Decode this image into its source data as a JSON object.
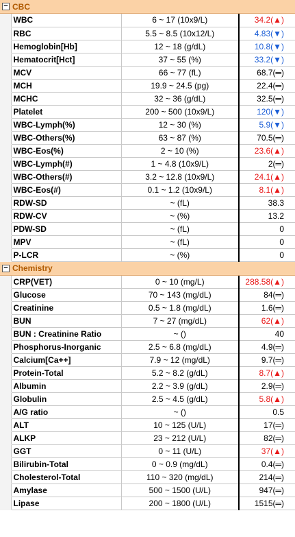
{
  "sections": [
    {
      "title": "CBC",
      "rows": [
        {
          "name": "WBC",
          "range": "6 ~ 17 (10x9/L)",
          "result": "34.2(▲)",
          "color": "red"
        },
        {
          "name": "RBC",
          "range": "5.5 ~ 8.5 (10x12/L)",
          "result": "4.83(▼)",
          "color": "blue"
        },
        {
          "name": "Hemoglobin[Hb]",
          "range": "12 ~ 18 (g/dL)",
          "result": "10.8(▼)",
          "color": "blue"
        },
        {
          "name": "Hematocrit[Hct]",
          "range": "37 ~ 55 (%)",
          "result": "33.2(▼)",
          "color": "blue"
        },
        {
          "name": "MCV",
          "range": "66 ~ 77 (fL)",
          "result": "68.7(═)",
          "color": "black"
        },
        {
          "name": "MCH",
          "range": "19.9 ~ 24.5 (pg)",
          "result": "22.4(═)",
          "color": "black"
        },
        {
          "name": "MCHC",
          "range": "32 ~ 36 (g/dL)",
          "result": "32.5(═)",
          "color": "black"
        },
        {
          "name": "Platelet",
          "range": "200 ~ 500 (10x9/L)",
          "result": "120(▼)",
          "color": "blue"
        },
        {
          "name": "WBC-Lymph(%)",
          "range": "12 ~ 30 (%)",
          "result": "5.9(▼)",
          "color": "blue"
        },
        {
          "name": "WBC-Others(%)",
          "range": "63 ~ 87 (%)",
          "result": "70.5(═)",
          "color": "black"
        },
        {
          "name": "WBC-Eos(%)",
          "range": "2 ~ 10 (%)",
          "result": "23.6(▲)",
          "color": "red"
        },
        {
          "name": "WBC-Lymph(#)",
          "range": "1 ~ 4.8 (10x9/L)",
          "result": "2(═)",
          "color": "black"
        },
        {
          "name": "WBC-Others(#)",
          "range": "3.2 ~ 12.8 (10x9/L)",
          "result": "24.1(▲)",
          "color": "red"
        },
        {
          "name": "WBC-Eos(#)",
          "range": "0.1 ~ 1.2 (10x9/L)",
          "result": "8.1(▲)",
          "color": "red"
        },
        {
          "name": "RDW-SD",
          "range": "~ (fL)",
          "result": "38.3",
          "color": "black"
        },
        {
          "name": "RDW-CV",
          "range": "~ (%)",
          "result": "13.2",
          "color": "black"
        },
        {
          "name": "PDW-SD",
          "range": "~ (fL)",
          "result": "0",
          "color": "black"
        },
        {
          "name": "MPV",
          "range": "~ (fL)",
          "result": "0",
          "color": "black"
        },
        {
          "name": "P-LCR",
          "range": "~ (%)",
          "result": "0",
          "color": "black"
        }
      ]
    },
    {
      "title": "Chemistry",
      "rows": [
        {
          "name": "CRP(VET)",
          "range": "0 ~ 10 (mg/L)",
          "result": "288.58(▲)",
          "color": "red"
        },
        {
          "name": "Glucose",
          "range": "70 ~ 143 (mg/dL)",
          "result": "84(═)",
          "color": "black"
        },
        {
          "name": "Creatinine",
          "range": "0.5 ~ 1.8 (mg/dL)",
          "result": "1.6(═)",
          "color": "black"
        },
        {
          "name": "BUN",
          "range": "7 ~ 27 (mg/dL)",
          "result": "62(▲)",
          "color": "red"
        },
        {
          "name": "BUN : Creatinine Ratio",
          "range": "~ ()",
          "result": "40",
          "color": "black"
        },
        {
          "name": "Phosphorus-Inorganic",
          "range": "2.5 ~ 6.8 (mg/dL)",
          "result": "4.9(═)",
          "color": "black"
        },
        {
          "name": "Calcium[Ca++]",
          "range": "7.9 ~ 12 (mg/dL)",
          "result": "9.7(═)",
          "color": "black"
        },
        {
          "name": "Protein-Total",
          "range": "5.2 ~ 8.2 (g/dL)",
          "result": "8.7(▲)",
          "color": "red"
        },
        {
          "name": "Albumin",
          "range": "2.2 ~ 3.9 (g/dL)",
          "result": "2.9(═)",
          "color": "black"
        },
        {
          "name": "Globulin",
          "range": "2.5 ~ 4.5 (g/dL)",
          "result": "5.8(▲)",
          "color": "red"
        },
        {
          "name": "A/G ratio",
          "range": "~ ()",
          "result": "0.5",
          "color": "black"
        },
        {
          "name": "ALT",
          "range": "10 ~ 125 (U/L)",
          "result": "17(═)",
          "color": "black"
        },
        {
          "name": "ALKP",
          "range": "23 ~ 212 (U/L)",
          "result": "82(═)",
          "color": "black"
        },
        {
          "name": "GGT",
          "range": "0 ~ 11 (U/L)",
          "result": "37(▲)",
          "color": "red"
        },
        {
          "name": "Bilirubin-Total",
          "range": "0 ~ 0.9 (mg/dL)",
          "result": "0.4(═)",
          "color": "black"
        },
        {
          "name": "Cholesterol-Total",
          "range": "110 ~ 320 (mg/dL)",
          "result": "214(═)",
          "color": "black"
        },
        {
          "name": "Amylase",
          "range": "500 ~ 1500 (U/L)",
          "result": "947(═)",
          "color": "black"
        },
        {
          "name": "Lipase",
          "range": "200 ~ 1800 (U/L)",
          "result": "1515(═)",
          "color": "black"
        }
      ]
    }
  ]
}
